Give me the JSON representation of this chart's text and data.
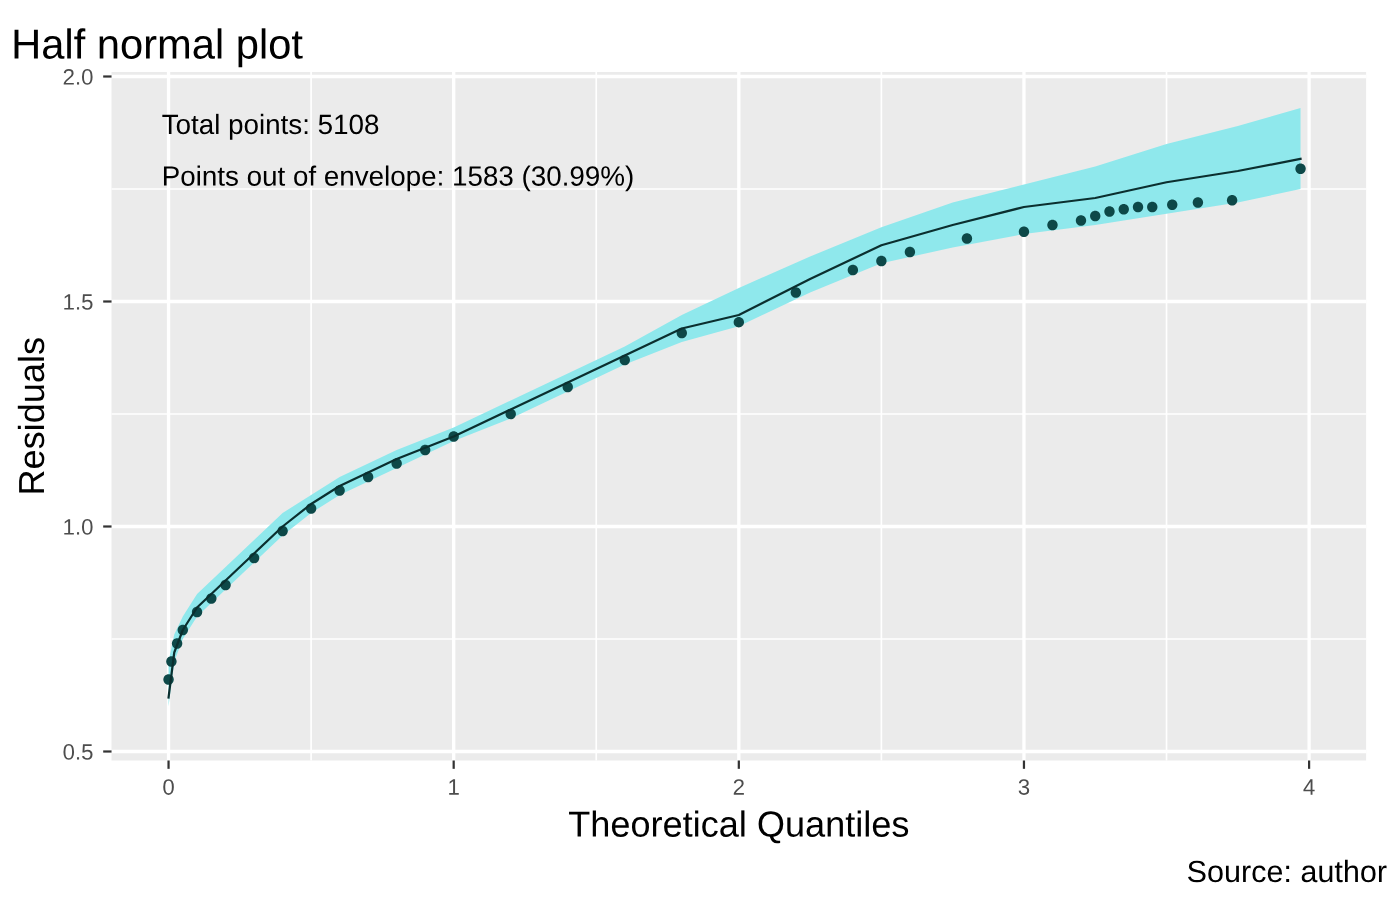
{
  "chart_data": {
    "type": "scatter",
    "title": "Half normal plot",
    "xlabel": "Theoretical Quantiles",
    "ylabel": "Residuals",
    "annotations": [
      "Total points: 5108",
      "Points out of envelope: 1583 (30.99%)",
      "Source: author"
    ],
    "xlim": [
      -0.2,
      4.2
    ],
    "ylim": [
      0.48,
      2.01
    ],
    "xticks": [
      0,
      1,
      2,
      3,
      4
    ],
    "yticks": [
      0.5,
      {
        "value": 1,
        "label": "1.0"
      },
      1.5,
      {
        "value": 2,
        "label": "2.0"
      }
    ],
    "grid": true,
    "series": [
      {
        "type": "line",
        "color": "#0b2f2f",
        "x": [
          0,
          0.02,
          0.05,
          0.1,
          0.2,
          0.3,
          0.4,
          0.5,
          0.6,
          0.8,
          1.0,
          1.2,
          1.4,
          1.6,
          1.8,
          2.0,
          2.25,
          2.5,
          2.75,
          3.0,
          3.25,
          3.5,
          3.75,
          3.97
        ],
        "values": [
          0.62,
          0.72,
          0.77,
          0.82,
          0.88,
          0.94,
          1.0,
          1.05,
          1.09,
          1.15,
          1.2,
          1.26,
          1.32,
          1.38,
          1.44,
          1.47,
          1.55,
          1.625,
          1.67,
          1.71,
          1.73,
          1.765,
          1.79,
          1.817
        ],
        "lower": [
          0.6,
          0.7,
          0.75,
          0.8,
          0.86,
          0.92,
          0.98,
          1.03,
          1.07,
          1.13,
          1.19,
          1.24,
          1.3,
          1.36,
          1.41,
          1.445,
          1.52,
          1.585,
          1.62,
          1.65,
          1.67,
          1.695,
          1.72,
          1.75
        ],
        "upper": [
          0.7,
          0.76,
          0.8,
          0.85,
          0.91,
          0.97,
          1.03,
          1.07,
          1.11,
          1.17,
          1.22,
          1.28,
          1.34,
          1.4,
          1.47,
          1.53,
          1.6,
          1.665,
          1.72,
          1.76,
          1.8,
          1.85,
          1.89,
          1.93
        ]
      },
      {
        "marker": "circle",
        "color": "#0d4848",
        "x": [
          0,
          0.01,
          0.03,
          0.05,
          0.1,
          0.15,
          0.2,
          0.3,
          0.4,
          0.5,
          0.6,
          0.7,
          0.8,
          0.9,
          1.0,
          1.2,
          1.4,
          1.6,
          1.8,
          2.0,
          2.2,
          2.4,
          2.5,
          2.6,
          2.8,
          3.0,
          3.1,
          3.2,
          3.25,
          3.3,
          3.35,
          3.4,
          3.45,
          3.52,
          3.61,
          3.73,
          3.97
        ],
        "values": [
          0.66,
          0.7,
          0.74,
          0.77,
          0.81,
          0.84,
          0.87,
          0.93,
          0.99,
          1.04,
          1.08,
          1.11,
          1.14,
          1.17,
          1.2,
          1.25,
          1.31,
          1.37,
          1.43,
          1.454,
          1.52,
          1.57,
          1.59,
          1.61,
          1.64,
          1.655,
          1.67,
          1.68,
          1.69,
          1.7,
          1.705,
          1.71,
          1.71,
          1.715,
          1.72,
          1.725,
          1.795
        ]
      }
    ]
  }
}
